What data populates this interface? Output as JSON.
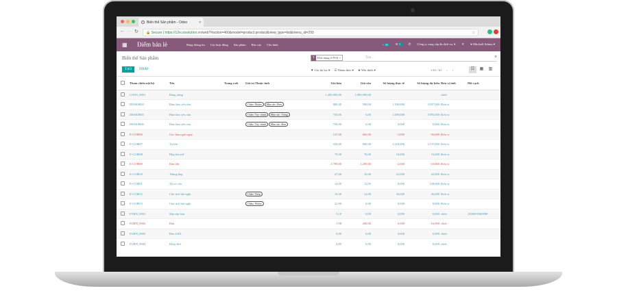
{
  "browser": {
    "tab_title": "Biến thể Sản phẩm - Odoo",
    "secure": "Secure",
    "url_host": "https://12e.izisolution.vn",
    "url_path": "/web?#action=460&model=product.product&view_type=list&menu_id=293"
  },
  "nav": {
    "brand": "Điểm bán lẻ",
    "menu": [
      "Bảng thông tin",
      "Các hoạt động",
      "Sản phẩm",
      "Báo cáo",
      "Cấu hình"
    ],
    "activity_count": "39",
    "message_count": "1",
    "company": "Công ty cung cấp đa dịch vụ.",
    "user": "Mitchell Admin"
  },
  "control": {
    "breadcrumb": "Biến thể Sản phẩm",
    "create": "TẠO",
    "import": "NHẬP",
    "facet": "Khả dụng ở POS",
    "search_placeholder": "Tìm...",
    "filters": "Các bộ lọc",
    "group_by": "Nhóm theo",
    "favorites": "Yêu thích",
    "pager": "1-61 / 61"
  },
  "columns": [
    "Tham chiếu nội bộ",
    "Tên",
    "Trang web",
    "Giá trị Thuộc tính",
    "Giá bán",
    "Giá vốn",
    "Số lượng thực tế",
    "Số lượng dự kiến",
    "Đơn vị tính",
    "Mã vạch"
  ],
  "rows": [
    {
      "ref": "CONS_0001",
      "name": "Bảng trắng",
      "tags": [],
      "price": "1.200.000,00",
      "cost": "1.000.000,00",
      "qty": "",
      "fqty": "",
      "uom": "chiếc",
      "barcode": "",
      "red": false
    },
    {
      "ref": "DESK0004",
      "name": "Bàn theo yêu cầu",
      "tags": [
        "Chân: Nhôm",
        "Màu sắc: Đen"
      ],
      "price": "800,40",
      "cost": "500,00",
      "qty": "1.100,000",
      "fqty": "1.097,000",
      "uom": "Đơn vị",
      "barcode": "",
      "red": false
    },
    {
      "ref": "DESK0005",
      "name": "Bàn theo yêu cầu",
      "tags": [
        "Chân: Tùy chỉnh",
        "Màu sắc: Trắng"
      ],
      "price": "750,00",
      "cost": "0,00",
      "qty": "1.499,000",
      "fqty": "1.995,000",
      "uom": "Đơn vị",
      "barcode": "",
      "red": false
    },
    {
      "ref": "DESK0006",
      "name": "Bàn theo yêu cầu",
      "tags": [
        "Chân: Tùy chỉnh",
        "Màu sắc: Đen"
      ],
      "price": "750,00",
      "cost": "0,00",
      "qty": "0,000",
      "fqty": "0,000",
      "uom": "Đơn vị",
      "barcode": "",
      "red": false
    },
    {
      "ref": "E-COM06",
      "name": "Góc bàn ngồi ngay",
      "tags": [],
      "price": "147,00",
      "cost": "600,00",
      "qty": "-1,000",
      "fqty": "-56,000",
      "uom": "Đơn vị",
      "barcode": "",
      "red": true
    },
    {
      "ref": "E-COM07",
      "name": "Tủ lớn",
      "tags": [],
      "price": "320,00",
      "cost": "800,00",
      "qty": "1.218,000",
      "fqty": "1.137,000",
      "uom": "Đơn vị",
      "barcode": "",
      "red": false
    },
    {
      "ref": "E-COM08",
      "name": "Hộp lưu trữ",
      "tags": [],
      "price": "79,00",
      "cost": "70,00",
      "qty": "16,000",
      "fqty": "16,000",
      "uom": "Đơn vị",
      "barcode": "",
      "red": false
    },
    {
      "ref": "E-COM09",
      "name": "Bàn lớn",
      "tags": [],
      "price": "1.799,00",
      "cost": "1.299,00",
      "qty": "-2,000",
      "fqty": "-10,000",
      "uom": "Đơn vị",
      "barcode": "",
      "red": true
    },
    {
      "ref": "E-COM10",
      "name": "Thùng đạp",
      "tags": [],
      "price": "47,00",
      "cost": "10,00",
      "qty": "22,000",
      "fqty": "22,000",
      "uom": "Đơn vị",
      "barcode": "",
      "red": false
    },
    {
      "ref": "E-COM11",
      "name": "Tủ có cửa",
      "tags": [],
      "price": "14,00",
      "cost": "12,50",
      "qty": "8,000",
      "fqty": "128,000",
      "uom": "Đơn vị",
      "barcode": "",
      "red": false
    },
    {
      "ref": "E-COM12",
      "name": "Chủ tịch hội nghị",
      "tags": [
        "Chân: Thép"
      ],
      "price": "16,50",
      "cost": "14,00",
      "qty": "26,000",
      "fqty": "26,000",
      "uom": "Đơn vị",
      "barcode": "",
      "red": false
    },
    {
      "ref": "E-COM13",
      "name": "Chủ tịch hội nghị",
      "tags": [
        "Chân: Nhôm"
      ],
      "price": "22,90",
      "cost": "0,00",
      "qty": "0,000",
      "fqty": "0,000",
      "uom": "Đơn vị",
      "barcode": "",
      "red": false
    },
    {
      "ref": "FURN_0001",
      "name": "Sắp xếp bàn",
      "tags": [],
      "price": "5,10",
      "cost": "0,00",
      "qty": "0,000",
      "fqty": "0,000",
      "uom": "chiếc",
      "barcode": "2300001000008",
      "red": false
    },
    {
      "ref": "FURN_0002",
      "name": "Bàn",
      "tags": [],
      "price": "1,98",
      "cost": "200,00",
      "qty": "0,000",
      "fqty": "-16,000",
      "uom": "chiếc",
      "barcode": "",
      "red": true
    },
    {
      "ref": "FURN_0003",
      "name": "Đèn LED",
      "tags": [],
      "price": "0,90",
      "cost": "0,00",
      "qty": "0,000",
      "fqty": "0,000",
      "uom": "chiếc",
      "barcode": "",
      "red": false
    },
    {
      "ref": "FURN_0004",
      "name": "Khay thư",
      "tags": [],
      "price": "4,80",
      "cost": "0,00",
      "qty": "0,000",
      "fqty": "0,000",
      "uom": "chiếc",
      "barcode": "",
      "red": false
    }
  ],
  "colors": {
    "brand": "#875a7b",
    "primary": "#00a09d",
    "link": "#4a9bb8",
    "danger": "#d9534f"
  }
}
